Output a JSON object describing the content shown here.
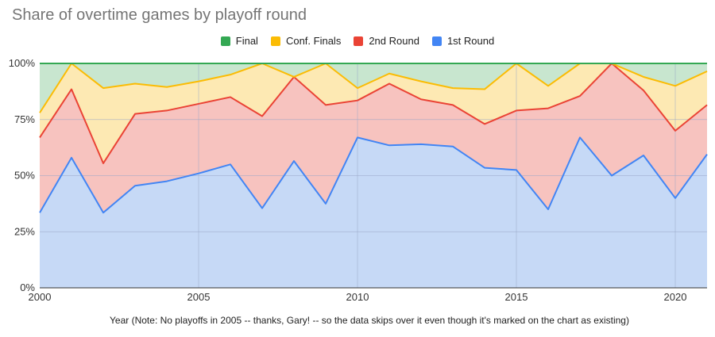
{
  "chart_data": {
    "type": "area",
    "stacked": "percent",
    "title": "Share of overtime games by playoff round",
    "xlabel": "Year (Note: No playoffs in 2005 -- thanks, Gary! -- so the data skips over it even though it's marked on the chart as existing)",
    "ylabel": "",
    "legend_position": "top",
    "grid": true,
    "x": [
      2000,
      2001,
      2002,
      2003,
      2004,
      2005,
      2006,
      2007,
      2008,
      2009,
      2010,
      2011,
      2012,
      2013,
      2014,
      2015,
      2016,
      2017,
      2018,
      2019,
      2020,
      2021
    ],
    "x_ticks": [
      "2000",
      "2005",
      "2010",
      "2015",
      "2020"
    ],
    "x_tick_values": [
      2000,
      2005,
      2010,
      2015,
      2020
    ],
    "xlim": [
      2000,
      2021
    ],
    "y_ticks": [
      "0%",
      "25%",
      "50%",
      "75%",
      "100%"
    ],
    "y_tick_values": [
      0,
      25,
      50,
      75,
      100
    ],
    "ylim": [
      0,
      100
    ],
    "series": [
      {
        "name": "Final",
        "color": "#34a853",
        "fill": "#c8e6cf",
        "values": [
          22,
          0,
          11,
          9,
          10.5,
          8,
          5,
          0,
          6,
          0,
          11,
          4.5,
          8,
          11,
          11.5,
          0,
          10,
          0,
          0,
          6,
          10,
          3.5
        ]
      },
      {
        "name": "Conf. Finals",
        "color": "#fbbc04",
        "fill": "#fde9b3",
        "values": [
          11,
          11.5,
          33.5,
          13.5,
          10.5,
          10,
          10,
          23.5,
          0,
          18.5,
          5.5,
          4.5,
          8,
          7.5,
          15.5,
          21,
          10,
          14.5,
          0,
          6,
          20,
          15
        ]
      },
      {
        "name": "2nd Round",
        "color": "#ea4335",
        "fill": "#f7c3bf",
        "values": [
          33.5,
          30.5,
          22,
          32,
          31.5,
          31,
          30,
          41,
          37.5,
          44,
          16.5,
          27.5,
          20,
          18.5,
          19.5,
          26.5,
          45,
          18.5,
          50,
          29,
          30,
          22
        ]
      },
      {
        "name": "1st Round",
        "color": "#4285f4",
        "fill": "#c6d9f6",
        "values": [
          33.5,
          58,
          33.5,
          45.5,
          47.5,
          51,
          55,
          35.5,
          56.5,
          37.5,
          67,
          63.5,
          64,
          63,
          53.5,
          52.5,
          35,
          67,
          50,
          59,
          40,
          59.5
        ]
      }
    ]
  }
}
